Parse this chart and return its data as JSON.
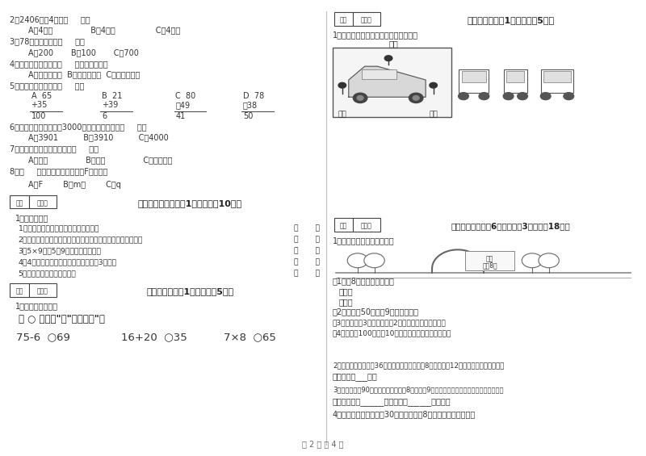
{
  "bg_color": "#ffffff",
  "text_color": "#333333",
  "page_footer": "第 2 页 共 4 页",
  "section5_title": "五、判断对与错（共1大题，共计10分）",
  "section6_title": "六、比一比（共1大题，共计5分）",
  "section7_title": "七、连一连（共1大题，共计5分）",
  "section8_title": "八、解决问题（共6小题，每题3分，共计18分）",
  "q2": "2．2406中的4表示（     ）。",
  "q2a": "A．4个百               B．4个十                C．4个一",
  "q3": "3．78最接近几百？（     ）。",
  "q3a": "A．200       B．100       C．700",
  "q4": "4．通过测量我们发现（     ）跳得比较远。",
  "q4a": "A．左脚单脚跳  B．右脚单脚跳  C．双脚并拢跳",
  "q5": "5．下列计算正确的是（     ）。",
  "q6": "6．一百一百的数，数到3000，下一个数应该是（     ）。",
  "q6a": "A．3901          B．3910          C．4000",
  "q7": "7．角的大小和两条边的长短（     ）。",
  "q7a": "A．有关               B．无关               C．不能确定",
  "q8": "8．（     ）是你在镜子里看到的F的样子。",
  "q8a": "A．F        B．m．        C．q",
  "sec5_sub": "1．我会判断。",
  "judge_items": [
    "1．每个三角形中至少有两个角是锐角。",
    "2．笔算两位数加减法时，相同数位要对齐，先从十位开始算。",
    "3．5×9表示5个9相乘的积是多少。",
    "4．4个小朋友每人握手一次，一共要握3次手。",
    "5．角的边越长，角就越大。"
  ],
  "sec6_sub": "1．我会判断大小。",
  "sec6_label": "在 ○ 里填上「>」、<或=。",
  "expressions": [
    "75-6  ○69",
    "16+20  ○35",
    "7×8  ○65"
  ],
  "sec7_sub": "1．请你连一连，下面分别是谁看到的？",
  "xiaohong": "小虹",
  "xiaodong": "小东",
  "xiaoming": "小明",
  "sec8_sub": "1．星期日同学们去游乐园。",
  "ticket_label1": "门票",
  "ticket_label2": "每张8元",
  "sub_q1": "（1）买8张门票用多少元？",
  "sub_q1a": "乘法：",
  "sub_q1b": "加法：",
  "sub_q2": "（2）小明拿50元，买9张门票够吗？",
  "sub_q3": "（3）小红买了3张门票，还剩2元钱，小红带了多少钱？",
  "sub_q4": "（4）小红拿100元，买10张门票，还可以剩下多少钱？",
  "big_q2": "2．一辆公共汽车里有36位乘客，到槐树镇下去8位，又上来12位，这时车上有多少位？",
  "big_q2a": "答：车上有___位。",
  "big_q3": "3．小红看一本90页的书，平均每天看8页，看了9天，小红看了多少页？还剩多少页没看？",
  "big_q3a": "答：小红看了______页，还剩下______页没看。",
  "big_q4": "4．会议室里，单人椅有30把，双人椅有8把，一共能坐多少人？",
  "calc_cols": [
    {
      "label": "A",
      "n1": "65",
      "op": "+",
      "n2": "35",
      "result": "100"
    },
    {
      "label": "B",
      "n1": "21",
      "op": "+",
      "n2": "39",
      "result": "6"
    },
    {
      "label": "C",
      "n1": "80",
      "op": "-",
      "n2": "49",
      "result": "41"
    },
    {
      "label": "D",
      "n1": "78",
      "op": "-",
      "n2": "38",
      "result": "50"
    }
  ]
}
